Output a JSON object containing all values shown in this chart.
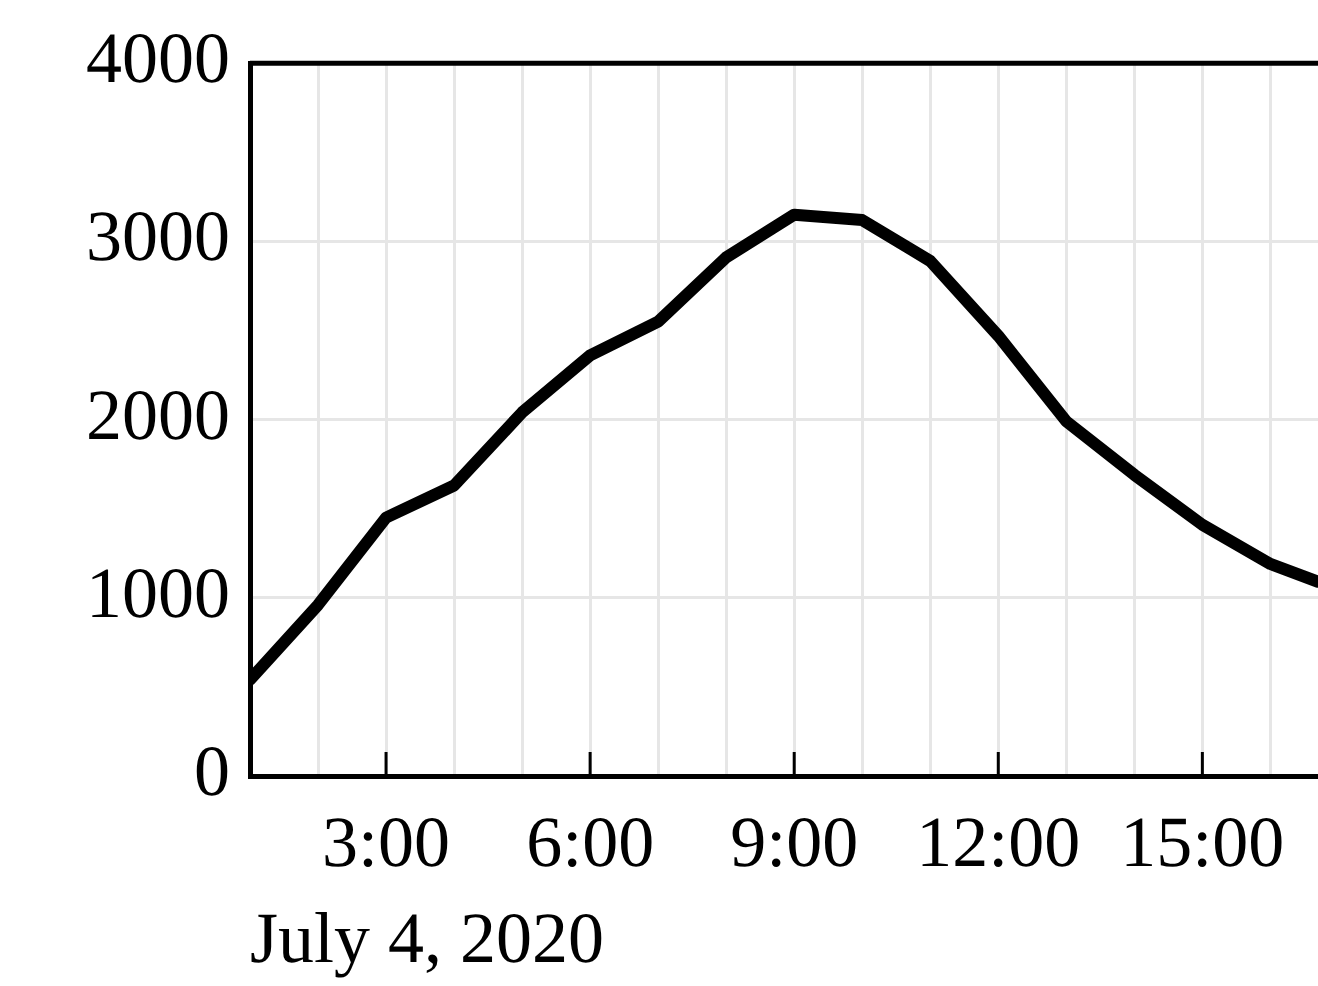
{
  "chart_data": {
    "type": "line",
    "xlabel": "July 4, 2020",
    "x": [
      1,
      2,
      3,
      4,
      5,
      6,
      7,
      8,
      9,
      10,
      11,
      12,
      13,
      14,
      15,
      16,
      16.7
    ],
    "series": [
      {
        "color": "#000000",
        "values": [
          540,
          960,
          1450,
          1630,
          2040,
          2360,
          2550,
          2910,
          3150,
          3120,
          2890,
          2470,
          1990,
          1690,
          1410,
          1190,
          1090
        ]
      }
    ],
    "xlim": [
      1,
      16.7
    ],
    "xticks": [
      {
        "value": 2,
        "label": null
      },
      {
        "value": 3,
        "label": "3:00"
      },
      {
        "value": 4,
        "label": null
      },
      {
        "value": 5,
        "label": null
      },
      {
        "value": 6,
        "label": "6:00"
      },
      {
        "value": 7,
        "label": null
      },
      {
        "value": 8,
        "label": null
      },
      {
        "value": 9,
        "label": "9:00"
      },
      {
        "value": 10,
        "label": null
      },
      {
        "value": 11,
        "label": null
      },
      {
        "value": 12,
        "label": "12:00"
      },
      {
        "value": 13,
        "label": null
      },
      {
        "value": 14,
        "label": null
      },
      {
        "value": 15,
        "label": "15:00"
      },
      {
        "value": 16,
        "label": null
      }
    ],
    "ylim": [
      0,
      4000
    ],
    "yticks": [
      0,
      1000,
      2000,
      3000,
      4000
    ],
    "grid": true,
    "legend": false,
    "marker": "none",
    "line_style": "solid"
  }
}
